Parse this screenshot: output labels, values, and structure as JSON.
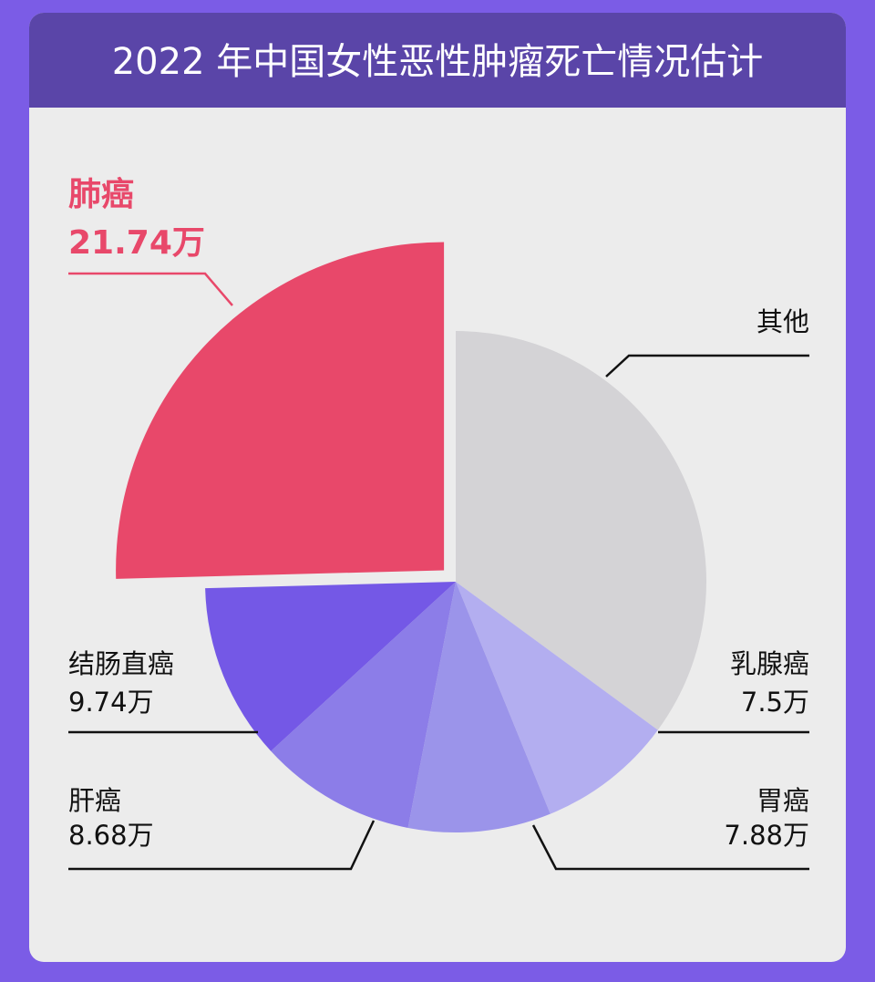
{
  "chart_data": {
    "type": "pie",
    "title": "2022 年中国女性恶性肿瘤死亡情况估计",
    "categories": [
      "其他",
      "乳腺癌",
      "胃癌",
      "肝癌",
      "结肠直癌",
      "肺癌"
    ],
    "values": [
      30,
      7.5,
      7.88,
      8.68,
      9.74,
      21.74
    ],
    "value_labels": [
      null,
      "7.5万",
      "7.88万",
      "8.68万",
      "9.74万",
      "21.74万"
    ],
    "colors": [
      "#d4d3d6",
      "#b3aef0",
      "#9b94ea",
      "#8c7de8",
      "#7458e6",
      "#e8486a"
    ]
  }
}
